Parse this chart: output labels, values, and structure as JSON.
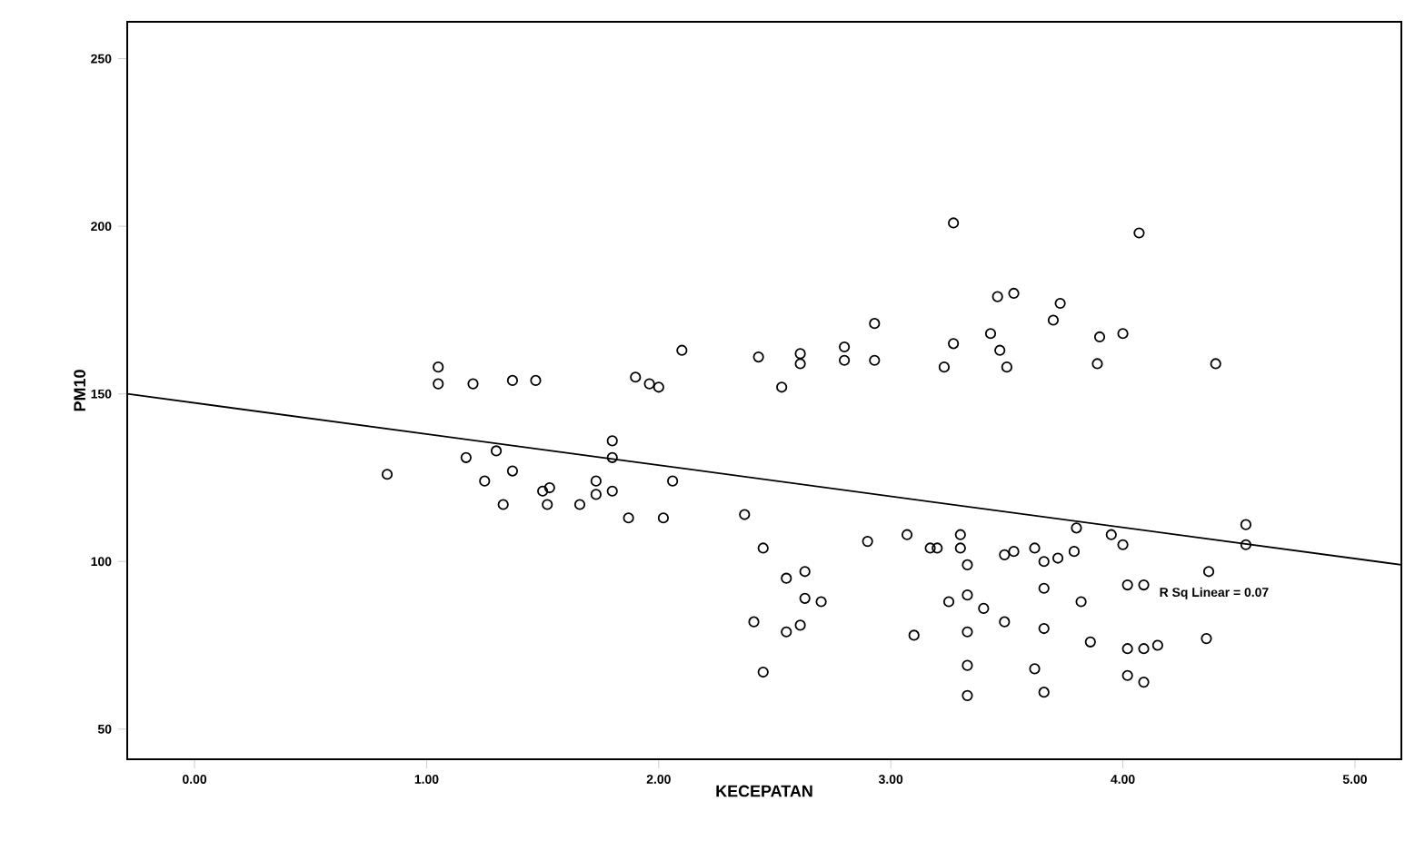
{
  "chart_data": {
    "type": "scatter",
    "xlabel": "KECEPATAN",
    "ylabel": "PM10",
    "xlim": [
      -0.29,
      5.2
    ],
    "ylim": [
      41,
      261
    ],
    "xticks": [
      {
        "value": 0,
        "label": "0.00"
      },
      {
        "value": 1,
        "label": "1.00"
      },
      {
        "value": 2,
        "label": "2.00"
      },
      {
        "value": 3,
        "label": "3.00"
      },
      {
        "value": 4,
        "label": "4.00"
      },
      {
        "value": 5,
        "label": "5.00"
      }
    ],
    "yticks": [
      50,
      100,
      150,
      200,
      250
    ],
    "annotations": [
      "R Sq Linear = 0.07"
    ],
    "series": [
      {
        "color": "#000000",
        "marker": "circle",
        "x": [
          1.05,
          1.05,
          1.2,
          1.37,
          1.47,
          1.9,
          1.96,
          2.0,
          1.8,
          1.8,
          1.3,
          1.17,
          1.37,
          0.83,
          1.25,
          1.33,
          1.5,
          1.53,
          1.52,
          1.66,
          1.73,
          1.73,
          1.8,
          1.87,
          3.27,
          4.07,
          3.46,
          3.53,
          3.73,
          3.7,
          2.93,
          2.1,
          2.43,
          2.61,
          2.61,
          2.8,
          2.8,
          2.93,
          3.27,
          3.43,
          3.47,
          3.23,
          3.5,
          3.9,
          4.0,
          3.89,
          2.53,
          2.06,
          2.02,
          2.37,
          2.45,
          2.55,
          2.63,
          2.63,
          2.7,
          2.41,
          2.55,
          2.61,
          2.45,
          2.9,
          3.07,
          3.1,
          3.17,
          3.2,
          3.3,
          3.3,
          3.33,
          3.25,
          3.33,
          3.4,
          3.33,
          3.33,
          3.33,
          3.49,
          3.49,
          3.53,
          3.62,
          3.66,
          3.72,
          3.79,
          3.8,
          3.66,
          3.66,
          3.62,
          3.66,
          3.82,
          3.86,
          3.95,
          4.0,
          4.02,
          4.09,
          4.02,
          4.09,
          4.15,
          4.02,
          4.09,
          4.53,
          4.53,
          4.37,
          4.36,
          4.4
        ],
        "values": [
          158,
          153,
          153,
          154,
          154,
          155,
          153,
          152,
          136,
          131,
          133,
          131,
          127,
          126,
          124,
          117,
          121,
          122,
          117,
          117,
          124,
          120,
          121,
          113,
          201,
          198,
          179,
          180,
          177,
          172,
          171,
          163,
          161,
          162,
          159,
          164,
          160,
          160,
          165,
          168,
          163,
          158,
          158,
          167,
          168,
          159,
          152,
          124,
          113,
          114,
          104,
          95,
          97,
          89,
          88,
          82,
          79,
          81,
          67,
          106,
          108,
          78,
          104,
          104,
          108,
          104,
          99,
          88,
          90,
          86,
          79,
          69,
          60,
          82,
          102,
          103,
          104,
          100,
          101,
          103,
          110,
          92,
          80,
          68,
          61,
          88,
          76,
          108,
          105,
          93,
          93,
          74,
          74,
          75,
          66,
          64,
          111,
          105,
          97,
          77,
          159
        ]
      },
      {
        "type": "line",
        "marker": "none",
        "color": "#000000",
        "x": [
          -0.29,
          5.2
        ],
        "values": [
          150,
          99
        ]
      }
    ]
  }
}
